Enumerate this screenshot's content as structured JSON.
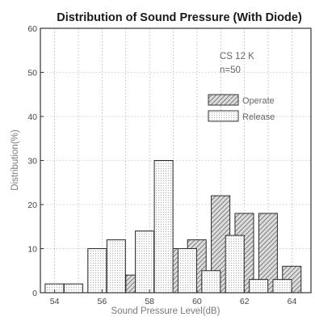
{
  "chart_data": {
    "type": "bar",
    "title": "Distribution of Sound Pressure (With Diode)",
    "xlabel": "Sound Pressure Level(dB)",
    "ylabel": "Distribution(%)",
    "xlim": [
      53.4,
      64.8
    ],
    "ylim": [
      0,
      60
    ],
    "x_ticks": [
      54,
      56,
      58,
      60,
      62,
      64
    ],
    "y_ticks": [
      0,
      10,
      20,
      30,
      40,
      50,
      60
    ],
    "grid": true,
    "legend_position": "right",
    "annotations": [
      "CS 12 K",
      "n=50"
    ],
    "series": [
      {
        "name": "Operate",
        "points": [
          {
            "x": 57.0,
            "y": 4
          },
          {
            "x": 57.8,
            "y": 8
          },
          {
            "x": 58.6,
            "y": 10
          },
          {
            "x": 59.6,
            "y": 12
          },
          {
            "x": 60.6,
            "y": 22
          },
          {
            "x": 61.6,
            "y": 18
          },
          {
            "x": 62.6,
            "y": 18
          },
          {
            "x": 63.6,
            "y": 6
          }
        ]
      },
      {
        "name": "Release",
        "points": [
          {
            "x": 53.6,
            "y": 2
          },
          {
            "x": 54.4,
            "y": 2
          },
          {
            "x": 55.4,
            "y": 10
          },
          {
            "x": 56.2,
            "y": 12
          },
          {
            "x": 57.4,
            "y": 14
          },
          {
            "x": 58.2,
            "y": 30
          },
          {
            "x": 59.2,
            "y": 10
          },
          {
            "x": 60.2,
            "y": 5
          },
          {
            "x": 61.2,
            "y": 13
          },
          {
            "x": 62.2,
            "y": 3
          },
          {
            "x": 63.2,
            "y": 3
          }
        ]
      }
    ]
  }
}
